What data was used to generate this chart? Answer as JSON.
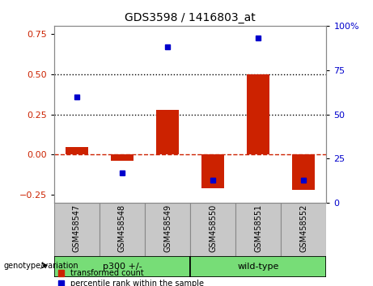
{
  "title": "GDS3598 / 1416803_at",
  "samples": [
    "GSM458547",
    "GSM458548",
    "GSM458549",
    "GSM458550",
    "GSM458551",
    "GSM458552"
  ],
  "red_values": [
    0.05,
    -0.04,
    0.28,
    -0.21,
    0.5,
    -0.22
  ],
  "blue_values": [
    60,
    17,
    88,
    13,
    93,
    13
  ],
  "group_label": "genotype/variation",
  "group_defs": [
    {
      "start": 0,
      "end": 3,
      "label": "p300 +/-"
    },
    {
      "start": 3,
      "end": 6,
      "label": "wild-type"
    }
  ],
  "ylim_left": [
    -0.3,
    0.8
  ],
  "ylim_right": [
    0,
    100
  ],
  "yticks_left": [
    -0.25,
    0.0,
    0.25,
    0.5,
    0.75
  ],
  "yticks_right": [
    0,
    25,
    50,
    75,
    100
  ],
  "hlines": [
    0.25,
    0.5
  ],
  "bar_width": 0.5,
  "red_color": "#CC2200",
  "blue_color": "#0000CC",
  "bg_label": "#C8C8C8",
  "bg_group": "#77DD77",
  "legend_items": [
    "transformed count",
    "percentile rank within the sample"
  ]
}
